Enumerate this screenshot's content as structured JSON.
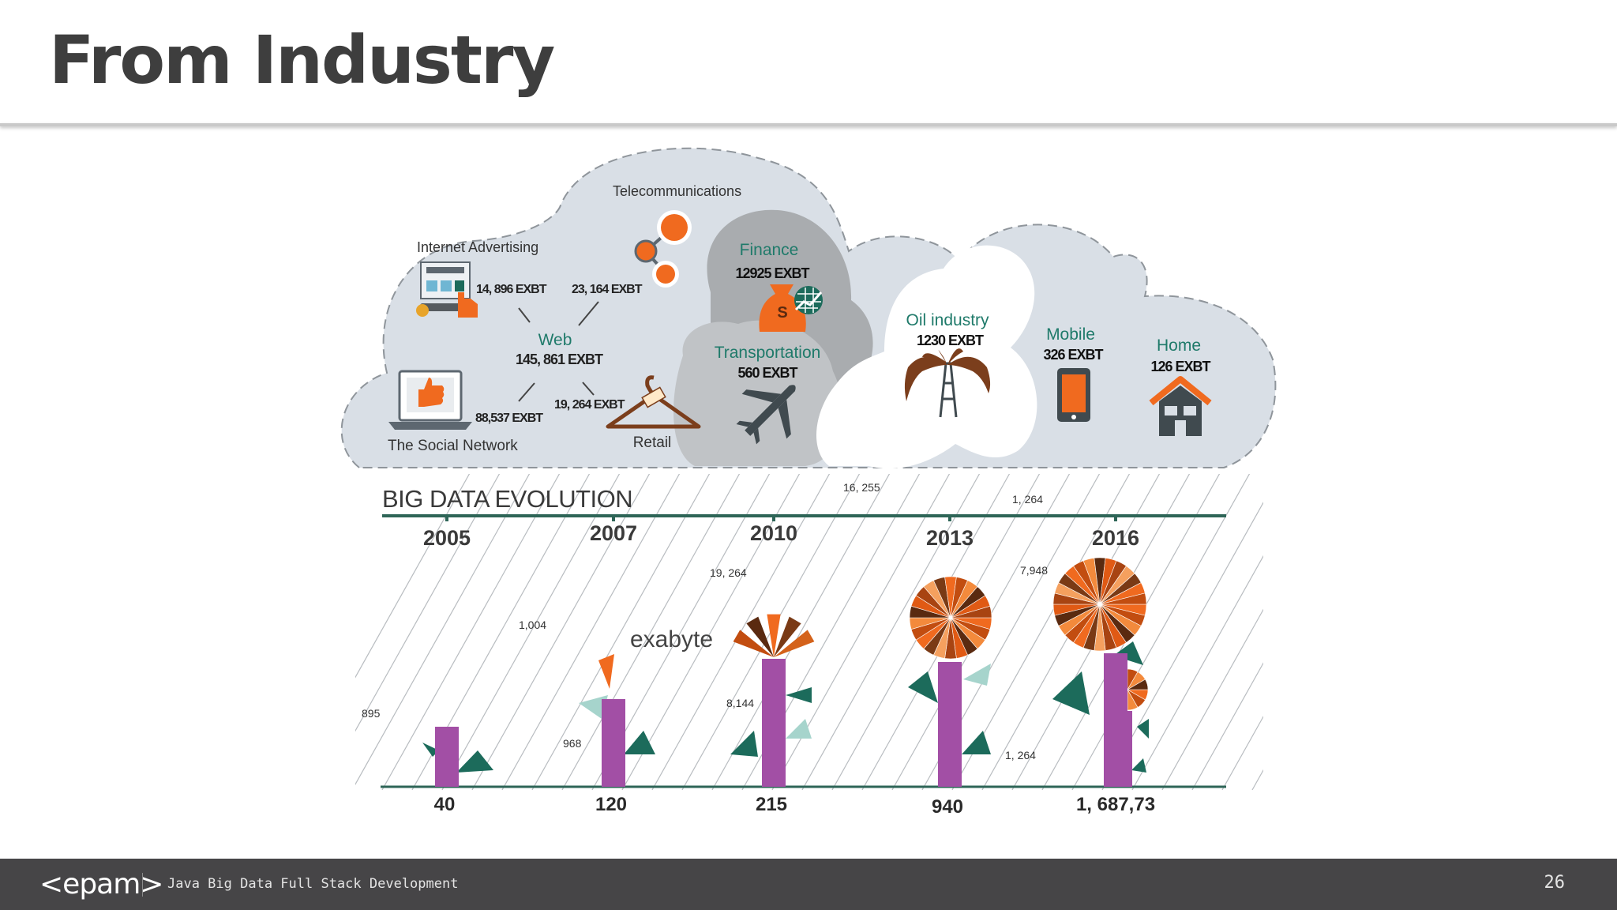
{
  "slide": {
    "title": "From Industry",
    "page_number": "26"
  },
  "footer": {
    "logo": "<epam>",
    "text": "Java Big Data Full Stack Development"
  },
  "cloud": {
    "internet_advertising": {
      "label": "Internet Advertising",
      "value1": "14, 896 EXBT",
      "value2": "23, 164 EXBT"
    },
    "telecommunications": {
      "label": "Telecommunications"
    },
    "finance": {
      "label": "Finance",
      "value": "12925 EXBT"
    },
    "web": {
      "label": "Web",
      "value": "145, 861 EXBT"
    },
    "social_network": {
      "label": "The Social Network",
      "value": "88,537 EXBT"
    },
    "retail": {
      "label": "Retail",
      "value": "19, 264 EXBT"
    },
    "transportation": {
      "label": "Transportation",
      "value": "560 EXBT"
    },
    "oil_industry": {
      "label": "Oil industry",
      "value": "1230 EXBT"
    },
    "mobile": {
      "label": "Mobile",
      "value": "326 EXBT"
    },
    "home": {
      "label": "Home",
      "value": "126 EXBT"
    }
  },
  "evolution": {
    "title": "BIG DATA EVOLUTION",
    "unit": "exabyte",
    "years": [
      "2005",
      "2007",
      "2010",
      "2013",
      "2016"
    ],
    "bottom_values": [
      "40",
      "120",
      "215",
      "940",
      "1, 687,73"
    ],
    "small_labels": [
      "895",
      "968",
      "1,004",
      "8,144",
      "19, 264",
      "16, 255",
      "7,948",
      "1, 264",
      "1, 264"
    ]
  },
  "chart_data": {
    "type": "bar",
    "title": "BIG DATA EVOLUTION",
    "categories": [
      "2005",
      "2007",
      "2010",
      "2013",
      "2016"
    ],
    "values": [
      40,
      120,
      215,
      940,
      1687.73
    ],
    "value_labels": [
      "40",
      "120",
      "215",
      "940",
      "1, 687,73"
    ],
    "ylabel": "exabyte"
  },
  "colors": {
    "title": "#3e3e3e",
    "cloud_fill": "#d9dfe6",
    "cloud_dark": "#a5a8ab",
    "teal_text": "#1f7a6a",
    "orange": "#f06a1f",
    "dark_orange": "#c24d10",
    "brown": "#6b3a1e",
    "purple": "#a24fa5",
    "dark_teal": "#1c6b5b",
    "light_teal": "#a6d4cc",
    "axis": "#2e6557",
    "footer_bg": "#464547"
  }
}
